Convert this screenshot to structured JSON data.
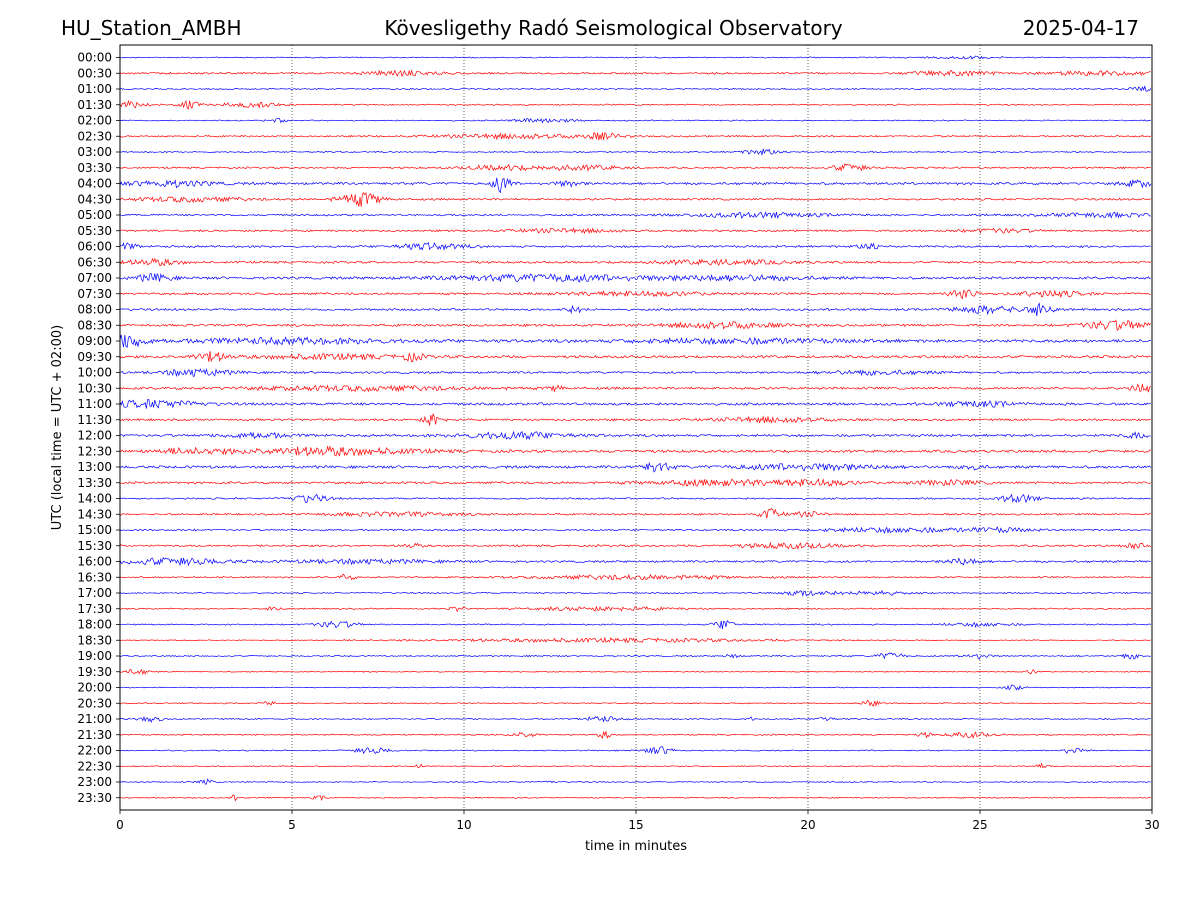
{
  "header": {
    "station": "HU_Station_AMBH",
    "title": "Kövesligethy Radó Seismological Observatory",
    "date": "2025-04-17"
  },
  "chart_data": {
    "type": "line",
    "title": "Kövesligethy Radó Seismological Observatory",
    "xlabel": "time in minutes",
    "ylabel": "UTC (local time = UTC + 02:00)",
    "xlim": [
      0,
      30
    ],
    "xticks": [
      "0",
      "5",
      "10",
      "15",
      "20",
      "25",
      "30"
    ],
    "grid": "vertical dotted lines at 5-minute intervals",
    "colors": {
      "even_rows": "#0000ff",
      "odd_rows": "#ff0000",
      "grid": "#000000"
    },
    "row_labels": [
      "00:00",
      "00:30",
      "01:00",
      "01:30",
      "02:00",
      "02:30",
      "03:00",
      "03:30",
      "04:00",
      "04:30",
      "05:00",
      "05:30",
      "06:00",
      "06:30",
      "07:00",
      "07:30",
      "08:00",
      "08:30",
      "09:00",
      "09:30",
      "10:00",
      "10:30",
      "11:00",
      "11:30",
      "12:00",
      "12:30",
      "13:00",
      "13:30",
      "14:00",
      "14:30",
      "15:00",
      "15:30",
      "16:00",
      "16:30",
      "17:00",
      "17:30",
      "18:00",
      "18:30",
      "19:00",
      "19:30",
      "20:00",
      "20:30",
      "21:00",
      "21:30",
      "22:00",
      "22:30",
      "23:00",
      "23:30"
    ],
    "trace_activity": [
      {
        "row": "00:00",
        "bg": 0.5,
        "bursts": [
          [
            24.5,
            1.0,
            0.8
          ]
        ]
      },
      {
        "row": "00:30",
        "bg": 0.9,
        "bursts": [
          [
            8.2,
            1.0,
            1.6
          ],
          [
            24.3,
            1.2,
            1.5
          ],
          [
            28.5,
            1.5,
            1.3
          ]
        ]
      },
      {
        "row": "01:00",
        "bg": 0.6,
        "bursts": [
          [
            29.8,
            0.4,
            1.5
          ]
        ]
      },
      {
        "row": "01:30",
        "bg": 0.6,
        "bursts": [
          [
            0.3,
            0.5,
            2.5
          ],
          [
            2.0,
            0.3,
            2.5
          ],
          [
            3.8,
            0.8,
            1.7
          ]
        ]
      },
      {
        "row": "02:00",
        "bg": 0.5,
        "bursts": [
          [
            12.3,
            0.8,
            1.6
          ],
          [
            4.6,
            0.3,
            1.2
          ]
        ]
      },
      {
        "row": "02:30",
        "bg": 0.8,
        "bursts": [
          [
            11.5,
            2.0,
            1.6
          ],
          [
            14.0,
            0.5,
            2.0
          ]
        ]
      },
      {
        "row": "03:00",
        "bg": 0.6,
        "bursts": [
          [
            18.7,
            0.6,
            1.8
          ]
        ]
      },
      {
        "row": "03:30",
        "bg": 0.8,
        "bursts": [
          [
            13.2,
            1.5,
            1.5
          ],
          [
            21.2,
            0.5,
            2.5
          ],
          [
            11.0,
            1.0,
            1.5
          ]
        ]
      },
      {
        "row": "04:00",
        "bg": 1.2,
        "bursts": [
          [
            11.1,
            0.25,
            6.0
          ],
          [
            1.5,
            1.2,
            2.0
          ],
          [
            29.6,
            0.5,
            2.0
          ],
          [
            13.0,
            0.4,
            1.6
          ]
        ]
      },
      {
        "row": "04:30",
        "bg": 1.0,
        "bursts": [
          [
            7.0,
            0.6,
            4.5
          ],
          [
            2.0,
            1.5,
            1.5
          ]
        ]
      },
      {
        "row": "05:00",
        "bg": 0.9,
        "bursts": [
          [
            18.5,
            2.0,
            1.5
          ],
          [
            28.5,
            1.5,
            1.4
          ]
        ]
      },
      {
        "row": "05:30",
        "bg": 0.9,
        "bursts": [
          [
            13.0,
            1.5,
            1.3
          ],
          [
            25.5,
            1.0,
            1.3
          ]
        ]
      },
      {
        "row": "06:00",
        "bg": 1.0,
        "bursts": [
          [
            9.0,
            1.0,
            2.0
          ],
          [
            21.8,
            0.3,
            2.6
          ],
          [
            0.2,
            0.3,
            2.0
          ]
        ]
      },
      {
        "row": "06:30",
        "bg": 1.0,
        "bursts": [
          [
            1.0,
            0.8,
            2.0
          ],
          [
            17.5,
            2.0,
            1.5
          ]
        ]
      },
      {
        "row": "07:00",
        "bg": 1.2,
        "bursts": [
          [
            12.5,
            3.0,
            2.2
          ],
          [
            1.0,
            0.5,
            2.5
          ],
          [
            18.0,
            2.0,
            1.6
          ]
        ]
      },
      {
        "row": "07:30",
        "bg": 1.0,
        "bursts": [
          [
            24.5,
            0.4,
            3.2
          ],
          [
            27.0,
            1.0,
            2.0
          ],
          [
            15.0,
            2.0,
            1.4
          ]
        ]
      },
      {
        "row": "08:00",
        "bg": 1.0,
        "bursts": [
          [
            26.8,
            0.3,
            5.0
          ],
          [
            25.2,
            1.0,
            2.5
          ],
          [
            13.2,
            0.3,
            2.0
          ]
        ]
      },
      {
        "row": "08:30",
        "bg": 1.1,
        "bursts": [
          [
            17.5,
            1.5,
            2.2
          ],
          [
            29.0,
            1.0,
            3.0
          ]
        ]
      },
      {
        "row": "09:00",
        "bg": 1.5,
        "bursts": [
          [
            0.2,
            0.5,
            4.5
          ],
          [
            5.0,
            3.0,
            1.6
          ],
          [
            18.0,
            3.0,
            1.4
          ]
        ]
      },
      {
        "row": "09:30",
        "bg": 1.3,
        "bursts": [
          [
            2.6,
            0.5,
            3.0
          ],
          [
            8.5,
            0.3,
            2.3
          ],
          [
            6.0,
            2.0,
            1.5
          ]
        ]
      },
      {
        "row": "10:00",
        "bg": 1.0,
        "bursts": [
          [
            2.2,
            1.0,
            2.3
          ],
          [
            22.0,
            1.5,
            1.3
          ]
        ]
      },
      {
        "row": "10:30",
        "bg": 1.2,
        "bursts": [
          [
            29.7,
            0.3,
            3.0
          ],
          [
            12.7,
            0.2,
            2.0
          ],
          [
            7.0,
            3.0,
            1.4
          ]
        ]
      },
      {
        "row": "11:00",
        "bg": 1.3,
        "bursts": [
          [
            1.0,
            1.2,
            2.5
          ],
          [
            25.0,
            1.0,
            1.6
          ]
        ]
      },
      {
        "row": "11:30",
        "bg": 1.0,
        "bursts": [
          [
            9.1,
            0.25,
            5.0
          ],
          [
            19.0,
            1.5,
            1.8
          ]
        ]
      },
      {
        "row": "12:00",
        "bg": 1.2,
        "bursts": [
          [
            11.5,
            1.5,
            2.2
          ],
          [
            4.0,
            1.0,
            1.6
          ],
          [
            29.5,
            0.3,
            2.0
          ]
        ]
      },
      {
        "row": "12:30",
        "bg": 1.3,
        "bursts": [
          [
            6.0,
            2.5,
            2.6
          ],
          [
            2.0,
            1.0,
            1.6
          ]
        ]
      },
      {
        "row": "13:00",
        "bg": 1.3,
        "bursts": [
          [
            15.6,
            0.4,
            3.2
          ],
          [
            20.0,
            2.0,
            2.0
          ],
          [
            24.8,
            0.3,
            1.8
          ]
        ]
      },
      {
        "row": "13:30",
        "bg": 1.1,
        "bursts": [
          [
            17.5,
            2.0,
            1.8
          ],
          [
            20.2,
            1.0,
            2.0
          ],
          [
            24.0,
            1.0,
            1.5
          ]
        ]
      },
      {
        "row": "14:00",
        "bg": 0.8,
        "bursts": [
          [
            5.5,
            0.5,
            2.8
          ],
          [
            26.1,
            0.5,
            2.8
          ]
        ]
      },
      {
        "row": "14:30",
        "bg": 0.8,
        "bursts": [
          [
            18.9,
            0.3,
            3.5
          ],
          [
            20.0,
            0.5,
            1.6
          ],
          [
            8.0,
            2.0,
            1.3
          ]
        ]
      },
      {
        "row": "15:00",
        "bg": 0.8,
        "bursts": [
          [
            22.5,
            2.0,
            1.6
          ],
          [
            25.5,
            1.0,
            1.3
          ]
        ]
      },
      {
        "row": "15:30",
        "bg": 0.9,
        "bursts": [
          [
            19.5,
            1.5,
            1.6
          ],
          [
            29.5,
            0.3,
            1.8
          ],
          [
            8.5,
            0.3,
            1.4
          ]
        ]
      },
      {
        "row": "16:00",
        "bg": 1.0,
        "bursts": [
          [
            1.5,
            1.5,
            2.2
          ],
          [
            24.5,
            0.5,
            2.0
          ],
          [
            7.0,
            2.0,
            1.3
          ]
        ]
      },
      {
        "row": "16:30",
        "bg": 0.7,
        "bursts": [
          [
            6.6,
            0.2,
            2.5
          ],
          [
            15.0,
            3.0,
            1.3
          ]
        ]
      },
      {
        "row": "17:00",
        "bg": 0.6,
        "bursts": [
          [
            20.0,
            0.8,
            1.8
          ],
          [
            22.0,
            0.8,
            1.4
          ]
        ]
      },
      {
        "row": "17:30",
        "bg": 0.6,
        "bursts": [
          [
            4.5,
            0.2,
            2.2
          ],
          [
            9.8,
            0.2,
            1.6
          ],
          [
            14.0,
            2.0,
            1.3
          ]
        ]
      },
      {
        "row": "18:00",
        "bg": 0.6,
        "bursts": [
          [
            17.6,
            0.3,
            3.5
          ],
          [
            6.3,
            0.6,
            2.2
          ],
          [
            25.0,
            1.0,
            1.2
          ]
        ]
      },
      {
        "row": "18:30",
        "bg": 0.35,
        "bursts": [
          [
            14.0,
            5.0,
            1.3
          ]
        ]
      },
      {
        "row": "19:00",
        "bg": 0.6,
        "bursts": [
          [
            22.4,
            0.4,
            2.2
          ],
          [
            24.9,
            0.4,
            2.0
          ],
          [
            29.4,
            0.3,
            1.8
          ],
          [
            17.8,
            0.2,
            1.6
          ]
        ]
      },
      {
        "row": "19:30",
        "bg": 0.4,
        "bursts": [
          [
            0.5,
            0.4,
            1.8
          ],
          [
            26.5,
            0.2,
            1.3
          ]
        ]
      },
      {
        "row": "20:00",
        "bg": 0.4,
        "bursts": [
          [
            26.0,
            0.3,
            1.6
          ]
        ]
      },
      {
        "row": "20:30",
        "bg": 0.5,
        "bursts": [
          [
            21.8,
            0.3,
            1.8
          ],
          [
            4.3,
            0.2,
            1.4
          ]
        ]
      },
      {
        "row": "21:00",
        "bg": 0.6,
        "bursts": [
          [
            0.9,
            0.3,
            2.0
          ],
          [
            14.0,
            0.5,
            1.8
          ],
          [
            20.5,
            0.2,
            2.0
          ],
          [
            18.3,
            0.1,
            1.6
          ]
        ]
      },
      {
        "row": "21:30",
        "bg": 0.6,
        "bursts": [
          [
            14.1,
            0.2,
            2.5
          ],
          [
            11.8,
            0.4,
            1.8
          ],
          [
            24.7,
            0.6,
            1.8
          ],
          [
            23.4,
            0.2,
            1.6
          ]
        ]
      },
      {
        "row": "22:00",
        "bg": 0.5,
        "bursts": [
          [
            7.3,
            0.5,
            2.0
          ],
          [
            15.7,
            0.4,
            2.5
          ],
          [
            27.7,
            0.3,
            2.3
          ]
        ]
      },
      {
        "row": "22:30",
        "bg": 0.45,
        "bursts": [
          [
            8.7,
            0.1,
            2.0
          ],
          [
            26.8,
            0.2,
            1.6
          ]
        ]
      },
      {
        "row": "23:00",
        "bg": 0.45,
        "bursts": [
          [
            2.5,
            0.2,
            1.8
          ],
          [
            12.5,
            0.1,
            1.8
          ]
        ]
      },
      {
        "row": "23:30",
        "bg": 0.45,
        "bursts": [
          [
            3.3,
            0.1,
            2.0
          ],
          [
            5.8,
            0.2,
            1.4
          ]
        ]
      }
    ]
  }
}
